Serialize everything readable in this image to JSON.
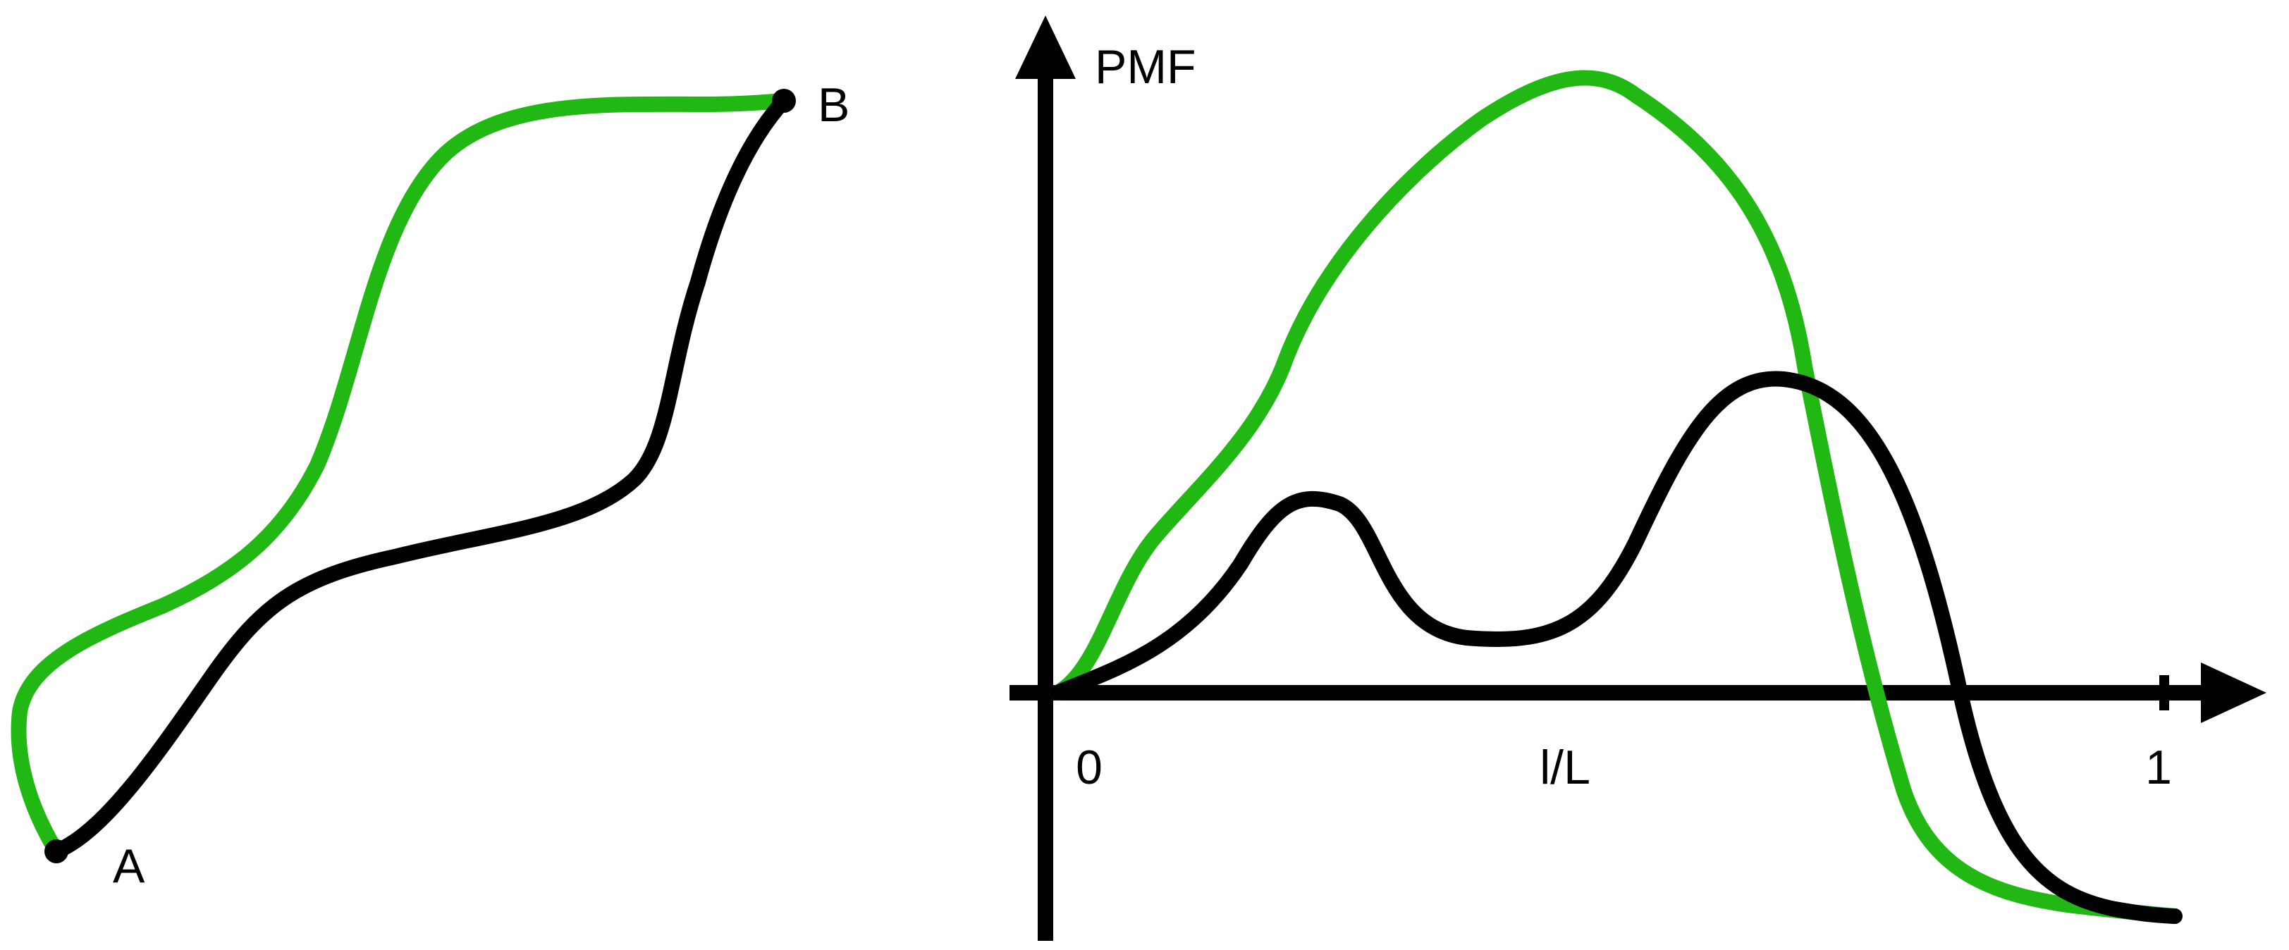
{
  "colors": {
    "path_1": "#22b814",
    "path_2": "#000000",
    "axes": "#000000"
  },
  "left_diagram": {
    "point_start": "A",
    "point_end": "B"
  },
  "right_diagram": {
    "y_axis_label": "PMF",
    "x_axis_label": "l/L",
    "x_tick_start": "0",
    "x_tick_end": "1"
  }
}
